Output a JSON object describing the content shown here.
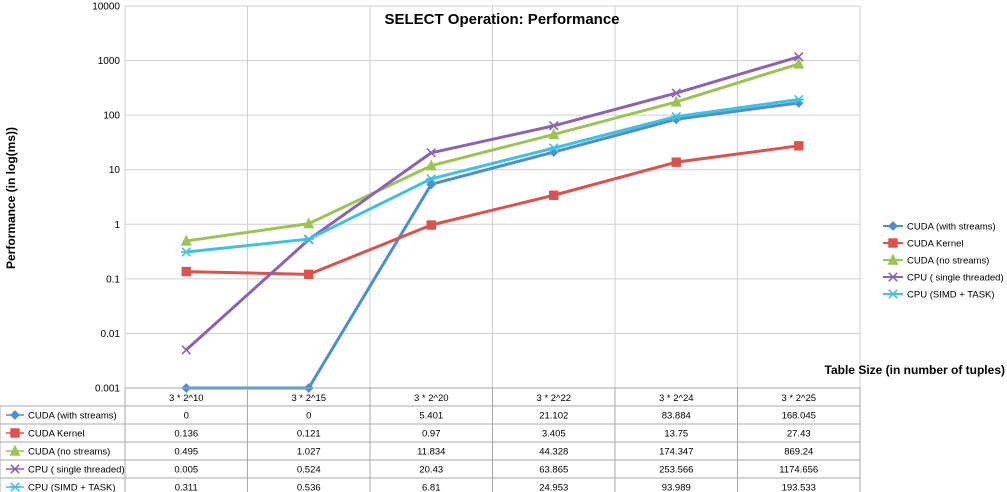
{
  "chart_data": {
    "type": "line",
    "title": "SELECT Operation: Performance",
    "xlabel": "Table Size (in number of tuples)",
    "ylabel": "Performance (in log(ms))",
    "y_scale": "log",
    "ylim": [
      0.001,
      10000
    ],
    "y_ticks": [
      "0.001",
      "0.01",
      "0.1",
      "1",
      "10",
      "100",
      "1000",
      "10000"
    ],
    "grid": true,
    "legend_position": "right",
    "categories": [
      "3 * 2^10",
      "3 * 2^15",
      "3 * 2^20",
      "3 * 2^22",
      "3 * 2^24",
      "3 * 2^25"
    ],
    "series": [
      {
        "name": "CUDA (with streams)",
        "color": "#4a8fd1",
        "marker": "diamond",
        "values": [
          0,
          0,
          5.401,
          21.102,
          83.884,
          168.045
        ],
        "labels": [
          "0",
          "0",
          "5.401",
          "21.102",
          "83.884",
          "168.045"
        ]
      },
      {
        "name": "CUDA Kernel",
        "color": "#e0504c",
        "marker": "square",
        "values": [
          0.136,
          0.121,
          0.97,
          3.405,
          13.75,
          27.43
        ],
        "labels": [
          "0.136",
          "0.121",
          "0.97",
          "3.405",
          "13.75",
          "27.43"
        ]
      },
      {
        "name": "CUDA (no streams)",
        "color": "#9bc452",
        "marker": "triangle",
        "values": [
          0.495,
          1.027,
          11.834,
          44.328,
          174.347,
          869.24
        ],
        "labels": [
          "0.495",
          "1.027",
          "11.834",
          "44.328",
          "174.347",
          "869.24"
        ]
      },
      {
        "name": "CPU ( single threaded)",
        "color": "#8b62b6",
        "marker": "x",
        "values": [
          0.005,
          0.524,
          20.43,
          63.865,
          253.566,
          1174.656
        ],
        "labels": [
          "0.005",
          "0.524",
          "20.43",
          "63.865",
          "253.566",
          "1174.656"
        ]
      },
      {
        "name": "CPU (SIMD + TASK)",
        "color": "#3ec3df",
        "marker": "star",
        "values": [
          0.311,
          0.536,
          6.81,
          24.953,
          93.989,
          193.533
        ],
        "labels": [
          "0.311",
          "0.536",
          "6.81",
          "24.953",
          "93.989",
          "193.533"
        ]
      }
    ]
  }
}
